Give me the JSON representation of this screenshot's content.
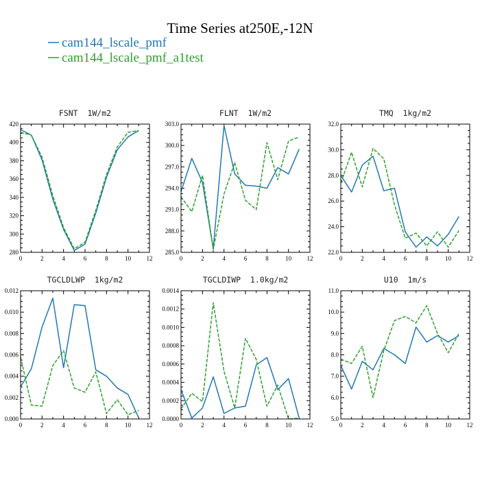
{
  "figure": {
    "title": "Time Series at250E,-12N",
    "legend": [
      {
        "label": "cam144_lscale_pmf",
        "color": "#1f77b4"
      },
      {
        "label": "cam144_lscale_pmf_a1test",
        "color": "#2ca02c"
      }
    ]
  },
  "chart_data": [
    {
      "type": "line",
      "title": "FSNT  1W/m2",
      "xlim": [
        0,
        12
      ],
      "ylim": [
        280,
        420
      ],
      "xticks": [
        "0",
        "2",
        "4",
        "6",
        "8",
        "10",
        "12"
      ],
      "yticks": [
        "280",
        "300",
        "320",
        "340",
        "360",
        "380",
        "400",
        "420"
      ],
      "x": [
        0,
        1,
        2,
        3,
        4,
        5,
        6,
        7,
        8,
        9,
        10,
        11
      ],
      "series": [
        {
          "name": "cam144_lscale_pmf",
          "color": "#1f77b4",
          "dash": "solid",
          "values": [
            414,
            408,
            381,
            338,
            305,
            282,
            289,
            323,
            362,
            392,
            406,
            413
          ]
        },
        {
          "name": "cam144_lscale_pmf_a1test",
          "color": "#2ca02c",
          "dash": "dashed",
          "values": [
            411,
            408,
            384,
            342,
            307,
            284,
            291,
            326,
            365,
            395,
            411,
            413
          ]
        }
      ]
    },
    {
      "type": "line",
      "title": "FLNT  1W/m2",
      "xlim": [
        0,
        12
      ],
      "ylim": [
        285,
        303
      ],
      "xticks": [
        "0",
        "2",
        "4",
        "6",
        "8",
        "10",
        "12"
      ],
      "yticks": [
        "285.0",
        "288.0",
        "291.0",
        "294.0",
        "297.0",
        "300.0",
        "303.0"
      ],
      "x": [
        0,
        1,
        2,
        3,
        4,
        5,
        6,
        7,
        8,
        9,
        10,
        11
      ],
      "series": [
        {
          "name": "cam144_lscale_pmf",
          "color": "#1f77b4",
          "dash": "solid",
          "values": [
            293.5,
            298.2,
            294.8,
            285.5,
            302.8,
            296.0,
            294.4,
            294.3,
            294.0,
            296.9,
            296.0,
            299.5
          ]
        },
        {
          "name": "cam144_lscale_pmf_a1test",
          "color": "#2ca02c",
          "dash": "dashed",
          "values": [
            292.8,
            290.7,
            295.8,
            285.4,
            293.2,
            297.6,
            292.3,
            291.0,
            300.4,
            295.2,
            300.6,
            301.2
          ]
        }
      ]
    },
    {
      "type": "line",
      "title": "TMQ  1kg/m2",
      "xlim": [
        0,
        12
      ],
      "ylim": [
        22,
        32
      ],
      "xticks": [
        "0",
        "2",
        "4",
        "6",
        "8",
        "10",
        "12"
      ],
      "yticks": [
        "22.0",
        "24.0",
        "26.0",
        "28.0",
        "30.0",
        "32.0"
      ],
      "x": [
        0,
        1,
        2,
        3,
        4,
        5,
        6,
        7,
        8,
        9,
        10,
        11
      ],
      "series": [
        {
          "name": "cam144_lscale_pmf",
          "color": "#1f77b4",
          "dash": "solid",
          "values": [
            28.0,
            26.7,
            28.8,
            29.5,
            26.8,
            27.0,
            23.6,
            22.4,
            23.2,
            22.5,
            23.4,
            24.8
          ]
        },
        {
          "name": "cam144_lscale_pmf_a1test",
          "color": "#2ca02c",
          "dash": "dashed",
          "values": [
            27.4,
            29.8,
            27.1,
            30.1,
            29.3,
            25.7,
            23.1,
            23.5,
            22.5,
            23.6,
            22.4,
            23.7
          ]
        }
      ]
    },
    {
      "type": "line",
      "title": "TGCLDLWP  1kg/m2",
      "xlim": [
        0,
        12
      ],
      "ylim": [
        0,
        0.012
      ],
      "xticks": [
        "0",
        "2",
        "4",
        "6",
        "8",
        "10",
        "12"
      ],
      "yticks": [
        "0.000",
        "0.002",
        "0.004",
        "0.006",
        "0.008",
        "0.010",
        "0.012"
      ],
      "x": [
        0,
        1,
        2,
        3,
        4,
        5,
        6,
        7,
        8,
        9,
        10,
        11
      ],
      "series": [
        {
          "name": "cam144_lscale_pmf",
          "color": "#1f77b4",
          "dash": "solid",
          "values": [
            0.003,
            0.0047,
            0.0086,
            0.0113,
            0.0048,
            0.0107,
            0.0106,
            0.0046,
            0.004,
            0.0029,
            0.0023,
            0.0001
          ]
        },
        {
          "name": "cam144_lscale_pmf_a1test",
          "color": "#2ca02c",
          "dash": "dashed",
          "values": [
            0.0058,
            0.0013,
            0.0012,
            0.005,
            0.0064,
            0.0029,
            0.0025,
            0.0044,
            0.0005,
            0.0018,
            0.0004,
            0.0008
          ]
        }
      ]
    },
    {
      "type": "line",
      "title": "TGCLDIWP  1.0kg/m2",
      "xlim": [
        0,
        12
      ],
      "ylim": [
        0,
        0.0014
      ],
      "xticks": [
        "0",
        "2",
        "4",
        "6",
        "8",
        "10",
        "12"
      ],
      "yticks": [
        "0.0000",
        "0.0002",
        "0.0004",
        "0.0006",
        "0.0008",
        "0.0010",
        "0.0012",
        "0.0014"
      ],
      "x": [
        0,
        1,
        2,
        3,
        4,
        5,
        6,
        7,
        8,
        9,
        10,
        11
      ],
      "series": [
        {
          "name": "cam144_lscale_pmf",
          "color": "#1f77b4",
          "dash": "solid",
          "values": [
            0.00032,
            1e-05,
            0.00012,
            0.00046,
            6e-05,
            0.00012,
            0.00014,
            0.00059,
            0.00067,
            0.00032,
            0.00044,
            1e-05
          ]
        },
        {
          "name": "cam144_lscale_pmf_a1test",
          "color": "#2ca02c",
          "dash": "dashed",
          "values": [
            0.00011,
            0.00028,
            0.00019,
            0.00127,
            0.00052,
            0.00012,
            0.00088,
            0.00065,
            0.00014,
            0.00037,
            0.0,
            1e-05
          ]
        }
      ]
    },
    {
      "type": "line",
      "title": "U10  1m/s",
      "xlim": [
        0,
        12
      ],
      "ylim": [
        5,
        11
      ],
      "xticks": [
        "0",
        "2",
        "4",
        "6",
        "8",
        "10",
        "12"
      ],
      "yticks": [
        "5.0",
        "6.0",
        "7.0",
        "8.0",
        "9.0",
        "10.0",
        "11.0"
      ],
      "x": [
        0,
        1,
        2,
        3,
        4,
        5,
        6,
        7,
        8,
        9,
        10,
        11
      ],
      "series": [
        {
          "name": "cam144_lscale_pmf",
          "color": "#1f77b4",
          "dash": "solid",
          "values": [
            7.5,
            6.4,
            7.7,
            7.3,
            8.3,
            8.0,
            7.6,
            9.3,
            8.6,
            8.9,
            8.6,
            8.9
          ]
        },
        {
          "name": "cam144_lscale_pmf_a1test",
          "color": "#2ca02c",
          "dash": "dashed",
          "values": [
            7.8,
            7.6,
            8.4,
            6.0,
            8.2,
            9.6,
            9.8,
            9.5,
            10.3,
            9.0,
            8.1,
            9.0
          ]
        }
      ]
    }
  ]
}
